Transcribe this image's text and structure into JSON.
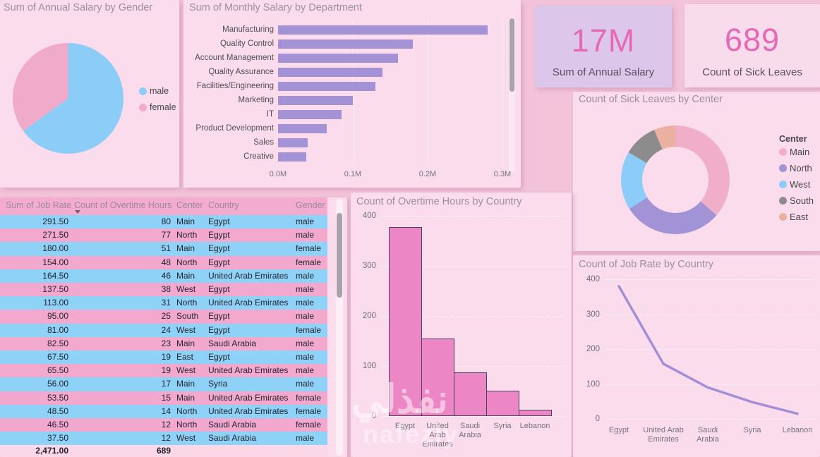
{
  "theme": {
    "page_bg": "#f2c3d9",
    "card_bg": "#fbdcec",
    "title_color": "#9c8fa0",
    "kpi_number_pink": "#e768b4",
    "kpi_card_purple_bg": "#dcc6e9",
    "kpi_card_pink_bg": "#f9dcec",
    "male_blue": "#8ccdf7",
    "female_pink": "#f0abcb",
    "dept_bar_purple": "#a392d5",
    "hist_bar_pink": "#ec86c4",
    "hist_bar_border": "#4c4160",
    "line_purple": "#a48fd6",
    "table_row_blue": "#8fd2f8",
    "table_row_pink": "#f3a9ce",
    "table_header_bg": "#f3abcf",
    "table_total_bg": "#fbd7e8"
  },
  "kpi": {
    "salary": {
      "value": "17M",
      "label": "Sum of Annual Salary"
    },
    "sick": {
      "value": "689",
      "label": "Count of Sick Leaves"
    }
  },
  "watermark": {
    "arabic": "نفذلي",
    "latin": "nafezly"
  },
  "table": {
    "columns": [
      "Sum of Job Rate",
      "Count of Overtime Hours",
      "Center",
      "Country",
      "Gender"
    ],
    "sorted_by": "Count of Overtime Hours",
    "sort_direction": "desc",
    "rows": [
      [
        "291.50",
        "80",
        "Main",
        "Egypt",
        "male"
      ],
      [
        "271.50",
        "77",
        "North",
        "Egypt",
        "male"
      ],
      [
        "180.00",
        "51",
        "Main",
        "Egypt",
        "female"
      ],
      [
        "154.00",
        "48",
        "North",
        "Egypt",
        "female"
      ],
      [
        "164.50",
        "46",
        "Main",
        "United Arab Emirates",
        "male"
      ],
      [
        "137.50",
        "38",
        "West",
        "Egypt",
        "male"
      ],
      [
        "113.00",
        "31",
        "North",
        "United Arab Emirates",
        "male"
      ],
      [
        "95.00",
        "25",
        "South",
        "Egypt",
        "male"
      ],
      [
        "81.00",
        "24",
        "West",
        "Egypt",
        "female"
      ],
      [
        "82.50",
        "23",
        "Main",
        "Saudi Arabia",
        "male"
      ],
      [
        "67.50",
        "19",
        "East",
        "Egypt",
        "male"
      ],
      [
        "65.50",
        "19",
        "West",
        "United Arab Emirates",
        "male"
      ],
      [
        "56.00",
        "17",
        "Main",
        "Syria",
        "male"
      ],
      [
        "53.50",
        "15",
        "Main",
        "United Arab Emirates",
        "female"
      ],
      [
        "48.50",
        "14",
        "North",
        "United Arab Emirates",
        "female"
      ],
      [
        "46.50",
        "12",
        "North",
        "Saudi Arabia",
        "female"
      ],
      [
        "37.50",
        "12",
        "West",
        "Saudi Arabia",
        "male"
      ]
    ],
    "totals": {
      "job_rate": "2,471.00",
      "overtime": "689"
    }
  },
  "chart_data": [
    {
      "type": "pie",
      "title": "Sum of Annual Salary by Gender",
      "labels": [
        "male",
        "female"
      ],
      "values_pct": [
        65,
        35
      ],
      "colors": [
        "#8ccdf7",
        "#f0abcb"
      ],
      "legend_position": "right"
    },
    {
      "type": "bar",
      "orientation": "horizontal",
      "title": "Sum of Monthly Salary by Department",
      "categories": [
        "Manufacturing",
        "Quality Control",
        "Account Management",
        "Quality Assurance",
        "Facilities/Engineering",
        "Marketing",
        "IT",
        "Product Development",
        "Sales",
        "Creative"
      ],
      "values_M": [
        0.28,
        0.18,
        0.16,
        0.14,
        0.13,
        0.1,
        0.085,
        0.065,
        0.04,
        0.038
      ],
      "xticks": [
        "0.0M",
        "0.1M",
        "0.2M",
        "0.3M"
      ],
      "xlim_M": [
        0,
        0.3
      ],
      "bar_color": "#a392d5",
      "grid": true
    },
    {
      "type": "pie",
      "subtype": "donut",
      "title": "Count of Sick Leaves by Center",
      "legend_title": "Center",
      "labels": [
        "Main",
        "North",
        "West",
        "South",
        "East"
      ],
      "values": [
        250,
        205,
        120,
        70,
        44
      ],
      "total": 689,
      "colors": [
        "#f0aec9",
        "#a292d6",
        "#8cccf8",
        "#8c8c8c",
        "#eab0a0"
      ],
      "legend_position": "right"
    },
    {
      "type": "bar",
      "orientation": "vertical",
      "title": "Count of Overtime Hours by Country",
      "categories": [
        "Egypt",
        "United Arab Emirates",
        "Saudi Arabia",
        "Syria",
        "Lebanon"
      ],
      "values": [
        378,
        155,
        88,
        51,
        12
      ],
      "yticks": [
        400,
        300,
        200,
        100,
        0
      ],
      "ylim": [
        0,
        400
      ],
      "bar_color": "#ec86c4",
      "grid": true
    },
    {
      "type": "line",
      "title": "Count of Job Rate by Country",
      "x": [
        "Egypt",
        "United Arab Emirates",
        "Saudi Arabia",
        "Syria",
        "Lebanon"
      ],
      "values": [
        380,
        158,
        90,
        48,
        15
      ],
      "yticks": [
        400,
        300,
        200,
        100,
        0
      ],
      "ylim": [
        0,
        400
      ],
      "line_color": "#a48fd6",
      "grid": true
    }
  ]
}
